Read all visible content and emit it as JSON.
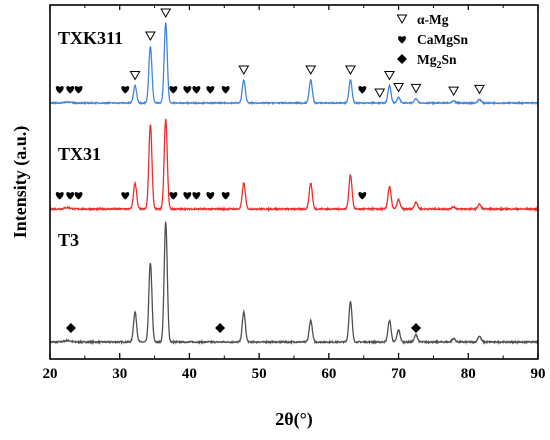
{
  "chart_data": {
    "type": "line",
    "xlabel": "2θ(°)",
    "ylabel": "Intensity (a.u.)",
    "xlim": [
      20,
      90
    ],
    "x_ticks": [
      "20",
      "30",
      "40",
      "50",
      "60",
      "70",
      "80",
      "90"
    ],
    "y_ticks_shown": false,
    "grid": false,
    "peak_positions": [
      {
        "x": 32.2,
        "T3": 0.25,
        "TX31": 0.22,
        "TXK311": 0.19
      },
      {
        "x": 34.4,
        "T3": 0.66,
        "TX31": 0.72,
        "TXK311": 0.62
      },
      {
        "x": 36.6,
        "T3": 1.0,
        "TX31": 0.76,
        "TXK311": 0.87
      },
      {
        "x": 47.8,
        "T3": 0.25,
        "TX31": 0.22,
        "TXK311": 0.25
      },
      {
        "x": 57.4,
        "T3": 0.18,
        "TX31": 0.22,
        "TXK311": 0.25
      },
      {
        "x": 63.1,
        "T3": 0.34,
        "TX31": 0.29,
        "TXK311": 0.25
      },
      {
        "x": 68.7,
        "T3": 0.18,
        "TX31": 0.19,
        "TXK311": 0.19
      },
      {
        "x": 70.0,
        "T3": 0.1,
        "TX31": 0.08,
        "TXK311": 0.06
      },
      {
        "x": 72.5,
        "T3": 0.06,
        "TX31": 0.06,
        "TXK311": 0.05
      },
      {
        "x": 77.9,
        "T3": 0.03,
        "TX31": 0.02,
        "TXK311": 0.02
      },
      {
        "x": 81.6,
        "T3": 0.05,
        "TX31": 0.04,
        "TXK311": 0.04
      }
    ],
    "series": [
      {
        "name": "T3",
        "color": "#505050",
        "peaks": [
          [
            32.2,
            0.25
          ],
          [
            34.4,
            0.66
          ],
          [
            36.6,
            1.0
          ],
          [
            47.8,
            0.25
          ],
          [
            57.4,
            0.18
          ],
          [
            63.1,
            0.34
          ],
          [
            68.7,
            0.18
          ],
          [
            70.0,
            0.1
          ],
          [
            72.5,
            0.06
          ],
          [
            77.9,
            0.03
          ],
          [
            81.6,
            0.05
          ]
        ],
        "markers": [
          {
            "x": 23.0,
            "symbol": "diamond"
          },
          {
            "x": 44.4,
            "symbol": "diamond"
          },
          {
            "x": 72.5,
            "symbol": "diamond"
          }
        ]
      },
      {
        "name": "TX31",
        "color": "#e8312f",
        "peaks": [
          [
            32.2,
            0.22
          ],
          [
            34.4,
            0.72
          ],
          [
            36.6,
            0.76
          ],
          [
            47.8,
            0.22
          ],
          [
            57.4,
            0.22
          ],
          [
            63.1,
            0.29
          ],
          [
            68.7,
            0.19
          ],
          [
            70.0,
            0.08
          ],
          [
            72.5,
            0.06
          ],
          [
            77.9,
            0.02
          ],
          [
            81.6,
            0.04
          ]
        ],
        "markers": [
          {
            "x": 21.4,
            "symbol": "heart"
          },
          {
            "x": 22.9,
            "symbol": "heart"
          },
          {
            "x": 24.1,
            "symbol": "heart"
          },
          {
            "x": 30.8,
            "symbol": "heart"
          },
          {
            "x": 37.7,
            "symbol": "heart"
          },
          {
            "x": 39.7,
            "symbol": "heart"
          },
          {
            "x": 41.0,
            "symbol": "heart"
          },
          {
            "x": 43.0,
            "symbol": "heart"
          },
          {
            "x": 45.2,
            "symbol": "heart"
          },
          {
            "x": 64.8,
            "symbol": "heart"
          }
        ]
      },
      {
        "name": "TXK311",
        "color": "#3f86d8",
        "peaks": [
          [
            32.2,
            0.19
          ],
          [
            34.4,
            0.62
          ],
          [
            36.6,
            0.87
          ],
          [
            47.8,
            0.25
          ],
          [
            57.4,
            0.25
          ],
          [
            63.1,
            0.25
          ],
          [
            68.7,
            0.19
          ],
          [
            70.0,
            0.06
          ],
          [
            72.5,
            0.05
          ],
          [
            77.9,
            0.02
          ],
          [
            81.6,
            0.04
          ]
        ],
        "markers": [
          {
            "x": 21.4,
            "symbol": "heart"
          },
          {
            "x": 22.9,
            "symbol": "heart"
          },
          {
            "x": 24.1,
            "symbol": "heart"
          },
          {
            "x": 30.8,
            "symbol": "heart"
          },
          {
            "x": 37.7,
            "symbol": "heart"
          },
          {
            "x": 39.7,
            "symbol": "heart"
          },
          {
            "x": 41.0,
            "symbol": "heart"
          },
          {
            "x": 43.0,
            "symbol": "heart"
          },
          {
            "x": 45.2,
            "symbol": "heart"
          },
          {
            "x": 64.8,
            "symbol": "heart"
          },
          {
            "x": 32.2,
            "symbol": "triangle"
          },
          {
            "x": 34.4,
            "symbol": "triangle"
          },
          {
            "x": 36.6,
            "symbol": "triangle"
          },
          {
            "x": 47.8,
            "symbol": "triangle"
          },
          {
            "x": 57.4,
            "symbol": "triangle"
          },
          {
            "x": 63.1,
            "symbol": "triangle"
          },
          {
            "x": 67.3,
            "symbol": "triangle"
          },
          {
            "x": 68.7,
            "symbol": "triangle"
          },
          {
            "x": 70.0,
            "symbol": "triangle"
          },
          {
            "x": 72.5,
            "symbol": "triangle"
          },
          {
            "x": 77.9,
            "symbol": "triangle"
          },
          {
            "x": 81.6,
            "symbol": "triangle"
          }
        ]
      }
    ],
    "legend": {
      "placement": "top-right",
      "entries": [
        {
          "symbol": "triangle",
          "label": "α-Mg"
        },
        {
          "symbol": "heart",
          "label": "CaMgSn"
        },
        {
          "symbol": "diamond",
          "label_main": "Mg",
          "label_sub": "2",
          "label_tail": "Sn"
        }
      ]
    }
  }
}
